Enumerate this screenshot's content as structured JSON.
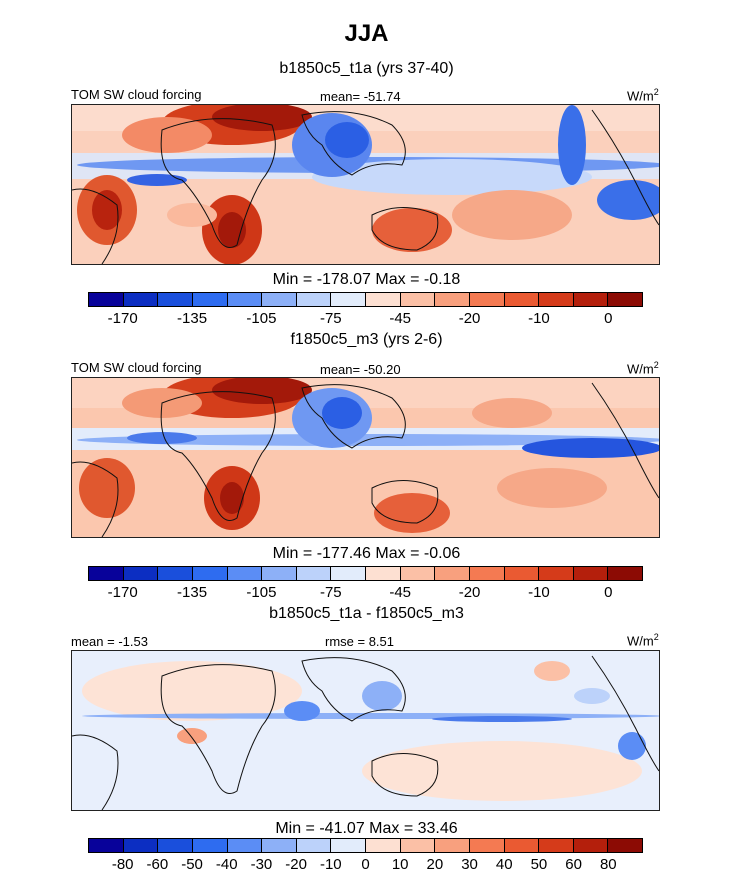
{
  "title": "JJA",
  "panels": [
    {
      "title": "b1850c5_t1a (yrs 37-40)",
      "left_label": "TOM SW cloud forcing",
      "center_label": "mean= -51.74",
      "units": "W/m",
      "units_sup": "2",
      "stats": "Min = -178.07 Max =  -0.18",
      "colorbar": {
        "colors": [
          "#08029a",
          "#0c2ec2",
          "#1a4fdc",
          "#2e6cf0",
          "#5b8df5",
          "#8db0f7",
          "#bcd2fa",
          "#e2ecfb",
          "#fde0d2",
          "#fbc0a6",
          "#f8a07e",
          "#f47a52",
          "#ea5a32",
          "#d53b1a",
          "#b41f0c",
          "#8c0b04"
        ],
        "tick_labels": [
          "-170",
          "-135",
          "-105",
          "-75",
          "-45",
          "-20",
          "-10",
          "0"
        ]
      }
    },
    {
      "title": "f1850c5_m3 (yrs 2-6)",
      "left_label": "TOM SW cloud forcing",
      "center_label": "mean= -50.20",
      "units": "W/m",
      "units_sup": "2",
      "stats": "Min = -177.46 Max =  -0.06",
      "colorbar": {
        "colors": [
          "#08029a",
          "#0c2ec2",
          "#1a4fdc",
          "#2e6cf0",
          "#5b8df5",
          "#8db0f7",
          "#bcd2fa",
          "#e2ecfb",
          "#fde0d2",
          "#fbc0a6",
          "#f8a07e",
          "#f47a52",
          "#ea5a32",
          "#d53b1a",
          "#b41f0c",
          "#8c0b04"
        ],
        "tick_labels": [
          "-170",
          "-135",
          "-105",
          "-75",
          "-45",
          "-20",
          "-10",
          "0"
        ]
      }
    },
    {
      "title": "b1850c5_t1a - f1850c5_m3",
      "left_label": "mean =  -1.53",
      "center_label": "rmse =  8.51",
      "units": "W/m",
      "units_sup": "2",
      "stats": "Min = -41.07 Max =  33.46",
      "colorbar": {
        "colors": [
          "#08029a",
          "#0c2ec2",
          "#1a4fdc",
          "#2e6cf0",
          "#5b8df5",
          "#8db0f7",
          "#bcd2fa",
          "#e2ecfb",
          "#fde0d2",
          "#fbc0a6",
          "#f8a07e",
          "#f47a52",
          "#ea5a32",
          "#d53b1a",
          "#b41f0c",
          "#8c0b04"
        ],
        "tick_labels": [
          "-80",
          "-60",
          "-50",
          "-40",
          "-30",
          "-20",
          "-10",
          "0",
          "10",
          "20",
          "30",
          "40",
          "50",
          "60",
          "80"
        ]
      }
    }
  ],
  "chart_data": [
    {
      "type": "heatmap",
      "title": "b1850c5_t1a (yrs 37-40)",
      "variable": "TOM SW cloud forcing",
      "units": "W/m2",
      "mean": -51.74,
      "min": -178.07,
      "max": -0.18,
      "colorbar_ticks": [
        -170,
        -135,
        -105,
        -75,
        -45,
        -20,
        -10,
        0
      ]
    },
    {
      "type": "heatmap",
      "title": "f1850c5_m3 (yrs 2-6)",
      "variable": "TOM SW cloud forcing",
      "units": "W/m2",
      "mean": -50.2,
      "min": -177.46,
      "max": -0.06,
      "colorbar_ticks": [
        -170,
        -135,
        -105,
        -75,
        -45,
        -20,
        -10,
        0
      ]
    },
    {
      "type": "heatmap",
      "title": "b1850c5_t1a - f1850c5_m3",
      "units": "W/m2",
      "mean": -1.53,
      "rmse": 8.51,
      "min": -41.07,
      "max": 33.46,
      "colorbar_ticks": [
        -80,
        -60,
        -50,
        -40,
        -30,
        -20,
        -10,
        0,
        10,
        20,
        30,
        40,
        50,
        60,
        80
      ]
    }
  ]
}
